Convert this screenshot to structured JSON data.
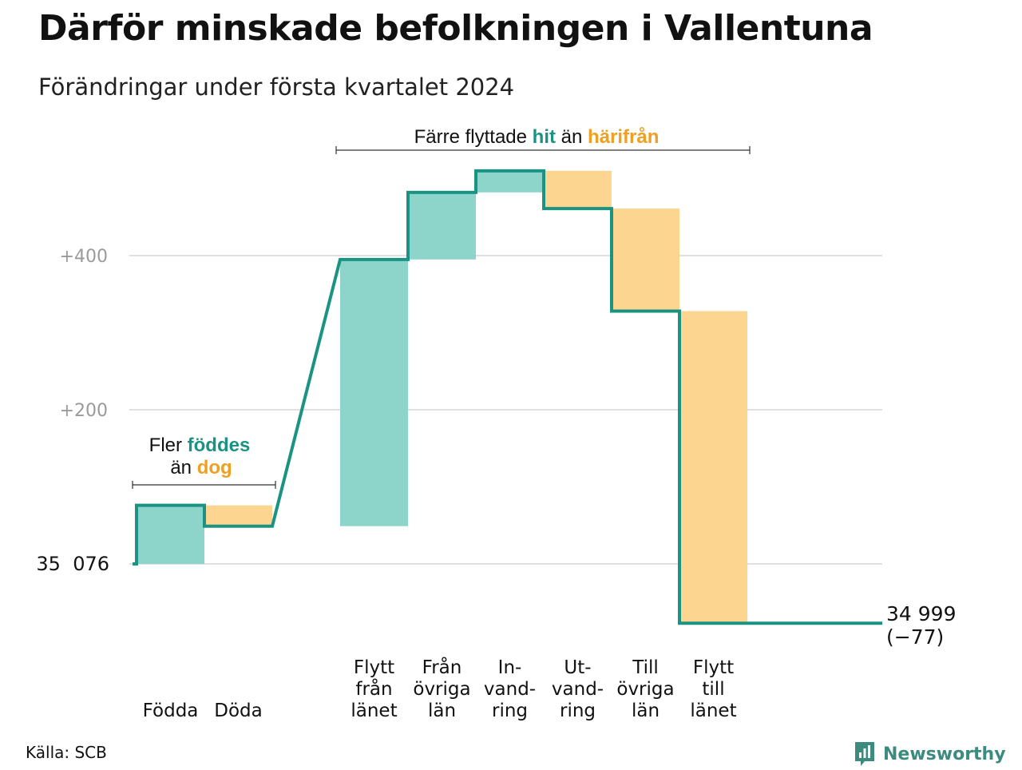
{
  "title": "Därför minskade befolkningen i Vallentuna",
  "subtitle": "Förändringar under första kvartalet 2024",
  "source": "Källa: SCB",
  "brand": "Newsworthy",
  "colors": {
    "increase_fill": "#8dd5cb",
    "decrease_fill": "#fcd690",
    "line": "#1a9383",
    "increase_text": "#1a9383",
    "decrease_text": "#f0a020",
    "grid": "#e0e0e0",
    "tick_text": "#9a9a9a"
  },
  "chart_data": {
    "type": "waterfall",
    "start": {
      "label": "35  076",
      "value": 35076
    },
    "end": {
      "label_line1": "34 999",
      "label_line2": "(−77)",
      "value": 34999
    },
    "y_ticks": [
      {
        "value": 200,
        "label": "+200"
      },
      {
        "value": 400,
        "label": "+400"
      }
    ],
    "grid": true,
    "steps": [
      {
        "name": "Födda",
        "label": [
          "Födda"
        ],
        "delta": 76,
        "kind": "increase"
      },
      {
        "name": "Döda",
        "label": [
          "Döda"
        ],
        "delta": -27,
        "kind": "decrease"
      },
      {
        "name": "Flytt från länet",
        "label": [
          "Flytt",
          "från",
          "länet"
        ],
        "delta": 346,
        "kind": "increase"
      },
      {
        "name": "Från övriga län",
        "label": [
          "Från",
          "övriga",
          "län"
        ],
        "delta": 87,
        "kind": "increase"
      },
      {
        "name": "Invandring",
        "label": [
          "In-",
          "vand-",
          "ring"
        ],
        "delta": 28,
        "kind": "increase"
      },
      {
        "name": "Utvandring",
        "label": [
          "Ut-",
          "vand-",
          "ring"
        ],
        "delta": -49,
        "kind": "decrease"
      },
      {
        "name": "Till övriga län",
        "label": [
          "Till",
          "övriga",
          "län"
        ],
        "delta": -133,
        "kind": "decrease"
      },
      {
        "name": "Flytt till länet",
        "label": [
          "Flytt",
          "till",
          "länet"
        ],
        "delta": -405,
        "kind": "decrease"
      }
    ],
    "annotations": [
      {
        "id": "births",
        "line1_prefix": "Fler ",
        "line1_highlight": "föddes",
        "line2_prefix": "än ",
        "line2_highlight": "dog"
      },
      {
        "id": "migration",
        "prefix": "Färre flyttade ",
        "highlight1": "hit",
        "middle": " än ",
        "highlight2": "härifrån"
      }
    ]
  }
}
